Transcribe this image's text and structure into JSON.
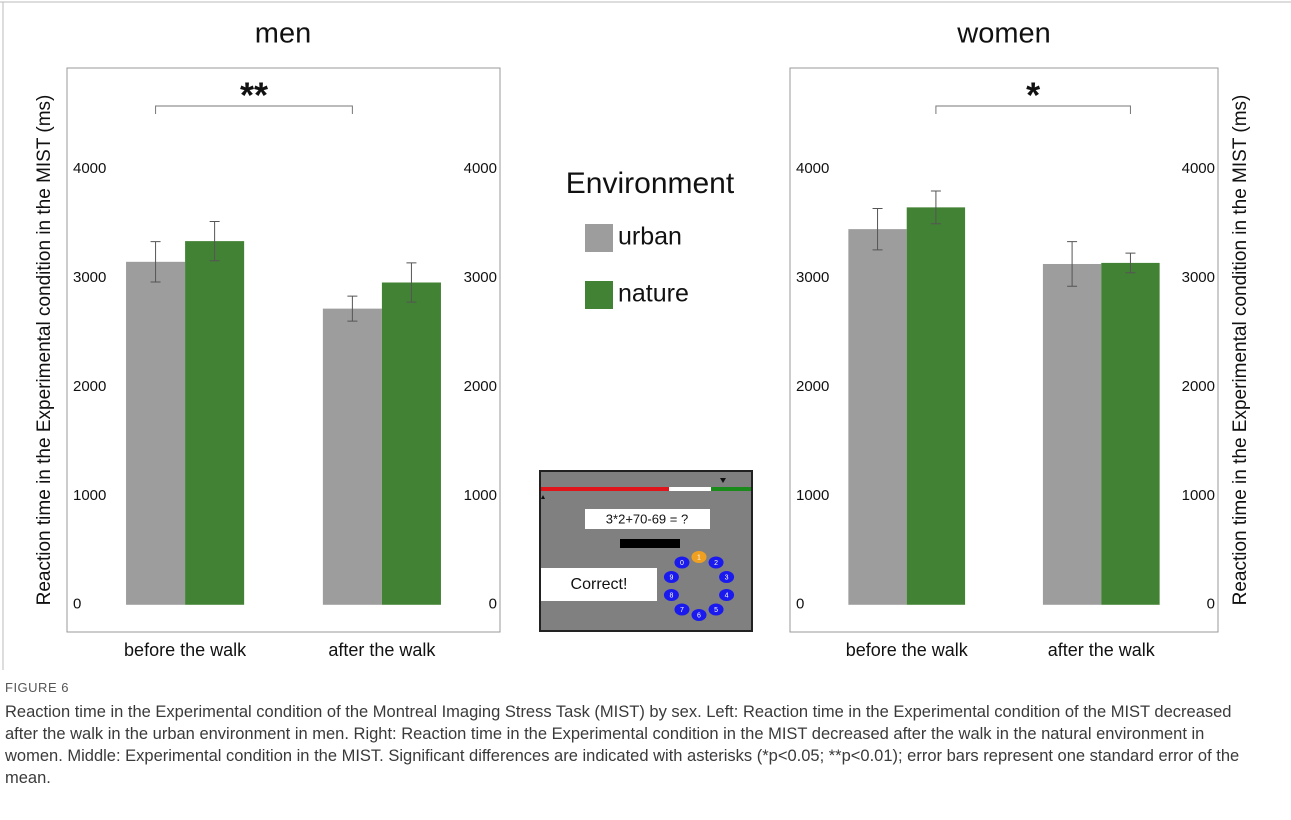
{
  "chart_data": [
    {
      "type": "bar",
      "title": "men",
      "y_label": "Reaction time in the Experimental condition in the MIST (ms)",
      "categories": [
        "before the walk",
        "after the walk"
      ],
      "series": [
        {
          "name": "urban",
          "color": "#9d9d9d",
          "values": [
            3150,
            2720
          ],
          "errors": [
            185,
            115
          ]
        },
        {
          "name": "nature",
          "color": "#428234",
          "values": [
            3340,
            2960
          ],
          "errors": [
            180,
            180
          ]
        }
      ],
      "ylim": [
        -250,
        4930
      ],
      "yticks": [
        0,
        1000,
        2000,
        3000,
        4000
      ],
      "annotation": "**"
    },
    {
      "type": "bar",
      "title": "women",
      "y_label": "Reaction time in the Experimental condition in the MIST (ms)",
      "categories": [
        "before the walk",
        "after the walk"
      ],
      "series": [
        {
          "name": "urban",
          "color": "#9d9d9d",
          "values": [
            3450,
            3130
          ],
          "errors": [
            190,
            205
          ]
        },
        {
          "name": "nature",
          "color": "#428234",
          "values": [
            3650,
            3140
          ],
          "errors": [
            150,
            90
          ]
        }
      ],
      "ylim": [
        -250,
        4930
      ],
      "yticks": [
        0,
        1000,
        2000,
        3000,
        4000
      ],
      "annotation": "*"
    }
  ],
  "legend": {
    "title": "Environment"
  },
  "inset": {
    "equation": "3*2+70-69 = ?",
    "feedback": "Correct!",
    "dial": [
      "1",
      "2",
      "3",
      "4",
      "5",
      "6",
      "7",
      "8",
      "9",
      "0"
    ]
  },
  "caption": {
    "label": "FIGURE 6",
    "text": "Reaction time in the Experimental condition of the Montreal Imaging Stress Task (MIST) by sex. Left: Reaction time in the Experimental condition of the MIST decreased after the walk in the urban environment in men. Right: Reaction time in the Experimental condition in the MIST decreased after the walk in the natural environment in women. Middle: Experimental condition in the MIST. Significant differences are indicated with asterisks (*p<0.05; **p<0.01); error bars represent one standard error of the mean."
  }
}
